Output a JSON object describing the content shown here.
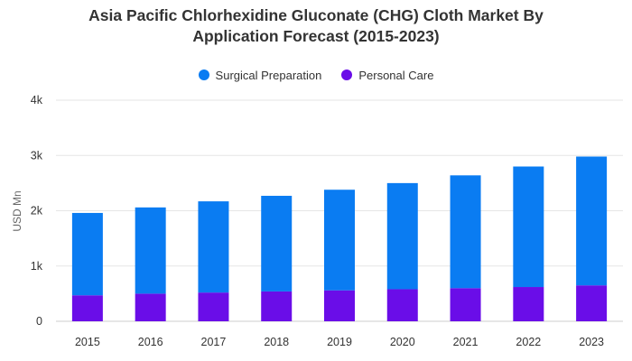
{
  "chart_data": {
    "type": "bar",
    "stacked": true,
    "title_line1": "Asia Pacific Chlorhexidine Gluconate (CHG) Cloth Market By",
    "title_line2": "Application Forecast (2015-2023)",
    "ylabel": "USD Mn",
    "xlabel": "",
    "ylim": [
      0,
      4000
    ],
    "y_ticks": [
      0,
      1000,
      2000,
      3000,
      4000
    ],
    "y_tick_labels": [
      "0",
      "1k",
      "2k",
      "3k",
      "4k"
    ],
    "grid": true,
    "legend_position": "top-center",
    "categories": [
      "2015",
      "2016",
      "2017",
      "2018",
      "2019",
      "2020",
      "2021",
      "2022",
      "2023"
    ],
    "series": [
      {
        "name": "Personal Care",
        "color": "#6a0de8",
        "values": [
          470,
          500,
          520,
          540,
          560,
          580,
          600,
          620,
          650
        ]
      },
      {
        "name": "Surgical Preparation",
        "color": "#0a7cf2",
        "values": [
          1490,
          1560,
          1650,
          1730,
          1820,
          1920,
          2040,
          2180,
          2330
        ]
      }
    ],
    "legend_order": [
      "Surgical Preparation",
      "Personal Care"
    ]
  }
}
